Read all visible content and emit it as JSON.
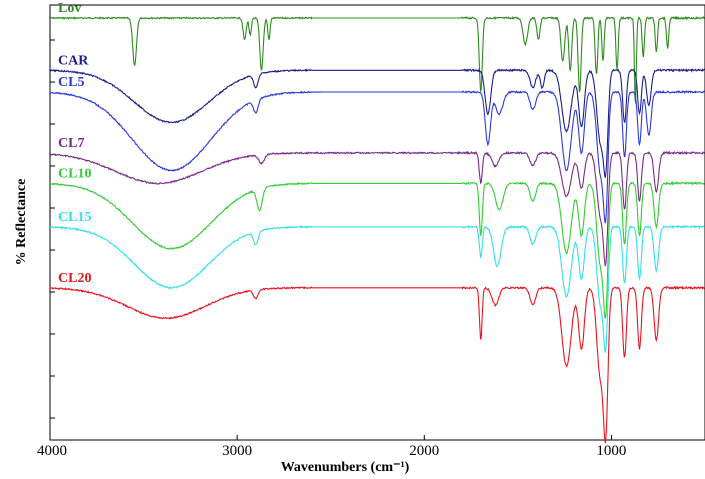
{
  "chart_data": {
    "type": "line",
    "title": "",
    "xlabel": "Wavenumbers (cm⁻¹)",
    "ylabel": "% Reflectance",
    "xlim": [
      4000,
      500
    ],
    "x_reversed": true,
    "x_ticks": [
      4000,
      3000,
      2000,
      1000
    ],
    "y_ticks_labeled": false,
    "grid": false,
    "legend": "inline labels at left",
    "series": [
      {
        "name": "Lov",
        "color": "#2e8b1e",
        "offset": 0.0,
        "baseline": 0.03,
        "bands": [
          {
            "center": 3548,
            "width": 10,
            "depth": 0.11
          },
          {
            "center": 2960,
            "width": 8,
            "depth": 0.05
          },
          {
            "center": 2930,
            "width": 6,
            "depth": 0.04
          },
          {
            "center": 2870,
            "width": 9,
            "depth": 0.12
          },
          {
            "center": 2830,
            "width": 6,
            "depth": 0.05
          },
          {
            "center": 1698,
            "width": 8,
            "depth": 0.17
          },
          {
            "center": 1460,
            "width": 12,
            "depth": 0.06
          },
          {
            "center": 1390,
            "width": 8,
            "depth": 0.05
          },
          {
            "center": 1260,
            "width": 10,
            "depth": 0.1
          },
          {
            "center": 1220,
            "width": 8,
            "depth": 0.12
          },
          {
            "center": 1170,
            "width": 8,
            "depth": 0.17
          },
          {
            "center": 1080,
            "width": 7,
            "depth": 0.13
          },
          {
            "center": 1045,
            "width": 6,
            "depth": 0.1
          },
          {
            "center": 970,
            "width": 6,
            "depth": 0.12
          },
          {
            "center": 872,
            "width": 5,
            "depth": 0.2
          },
          {
            "center": 830,
            "width": 6,
            "depth": 0.09
          },
          {
            "center": 760,
            "width": 6,
            "depth": 0.08
          },
          {
            "center": 700,
            "width": 6,
            "depth": 0.07
          }
        ]
      },
      {
        "name": "CAR",
        "color": "#1c1c8a",
        "offset": 0.12,
        "baseline": 0.03,
        "bands": [
          {
            "center": 3350,
            "width": 200,
            "depth": 0.12
          },
          {
            "center": 2900,
            "width": 12,
            "depth": 0.03
          },
          {
            "center": 1660,
            "width": 15,
            "depth": 0.1
          },
          {
            "center": 1420,
            "width": 15,
            "depth": 0.04
          },
          {
            "center": 1370,
            "width": 10,
            "depth": 0.04
          },
          {
            "center": 1240,
            "width": 25,
            "depth": 0.14
          },
          {
            "center": 1160,
            "width": 15,
            "depth": 0.13
          },
          {
            "center": 1060,
            "width": 18,
            "depth": 0.16
          },
          {
            "center": 1030,
            "width": 12,
            "depth": 0.2
          },
          {
            "center": 930,
            "width": 10,
            "depth": 0.12
          },
          {
            "center": 850,
            "width": 10,
            "depth": 0.1
          },
          {
            "center": 800,
            "width": 12,
            "depth": 0.08
          }
        ]
      },
      {
        "name": "CL5",
        "color": "#2a3ad6",
        "offset": 0.17,
        "baseline": 0.03,
        "bands": [
          {
            "center": 3350,
            "width": 210,
            "depth": 0.18
          },
          {
            "center": 2900,
            "width": 12,
            "depth": 0.03
          },
          {
            "center": 1660,
            "width": 14,
            "depth": 0.12
          },
          {
            "center": 1600,
            "width": 20,
            "depth": 0.05
          },
          {
            "center": 1420,
            "width": 15,
            "depth": 0.04
          },
          {
            "center": 1240,
            "width": 25,
            "depth": 0.18
          },
          {
            "center": 1160,
            "width": 15,
            "depth": 0.14
          },
          {
            "center": 1060,
            "width": 18,
            "depth": 0.18
          },
          {
            "center": 1030,
            "width": 12,
            "depth": 0.25
          },
          {
            "center": 930,
            "width": 10,
            "depth": 0.15
          },
          {
            "center": 850,
            "width": 10,
            "depth": 0.12
          },
          {
            "center": 800,
            "width": 12,
            "depth": 0.1
          }
        ]
      },
      {
        "name": "CL7",
        "color": "#7a2a8c",
        "offset": 0.32,
        "baseline": 0.02,
        "bands": [
          {
            "center": 3420,
            "width": 230,
            "depth": 0.07
          },
          {
            "center": 2870,
            "width": 15,
            "depth": 0.02
          },
          {
            "center": 1698,
            "width": 8,
            "depth": 0.07
          },
          {
            "center": 1620,
            "width": 18,
            "depth": 0.03
          },
          {
            "center": 1420,
            "width": 15,
            "depth": 0.03
          },
          {
            "center": 1240,
            "width": 25,
            "depth": 0.1
          },
          {
            "center": 1160,
            "width": 15,
            "depth": 0.08
          },
          {
            "center": 1060,
            "width": 18,
            "depth": 0.14
          },
          {
            "center": 1030,
            "width": 12,
            "depth": 0.22
          },
          {
            "center": 930,
            "width": 10,
            "depth": 0.13
          },
          {
            "center": 850,
            "width": 10,
            "depth": 0.11
          },
          {
            "center": 760,
            "width": 12,
            "depth": 0.09
          }
        ]
      },
      {
        "name": "CL10",
        "color": "#33cc33",
        "offset": 0.38,
        "baseline": 0.03,
        "bands": [
          {
            "center": 3350,
            "width": 210,
            "depth": 0.15
          },
          {
            "center": 2880,
            "width": 14,
            "depth": 0.05
          },
          {
            "center": 1698,
            "width": 8,
            "depth": 0.12
          },
          {
            "center": 1600,
            "width": 20,
            "depth": 0.06
          },
          {
            "center": 1420,
            "width": 15,
            "depth": 0.04
          },
          {
            "center": 1240,
            "width": 25,
            "depth": 0.16
          },
          {
            "center": 1160,
            "width": 15,
            "depth": 0.12
          },
          {
            "center": 1060,
            "width": 18,
            "depth": 0.18
          },
          {
            "center": 1030,
            "width": 12,
            "depth": 0.26
          },
          {
            "center": 930,
            "width": 10,
            "depth": 0.14
          },
          {
            "center": 850,
            "width": 10,
            "depth": 0.12
          },
          {
            "center": 760,
            "width": 12,
            "depth": 0.1
          }
        ]
      },
      {
        "name": "CL15",
        "color": "#33e0e8",
        "offset": 0.48,
        "baseline": 0.03,
        "bands": [
          {
            "center": 3350,
            "width": 200,
            "depth": 0.14
          },
          {
            "center": 2900,
            "width": 12,
            "depth": 0.03
          },
          {
            "center": 1698,
            "width": 8,
            "depth": 0.07
          },
          {
            "center": 1610,
            "width": 20,
            "depth": 0.09
          },
          {
            "center": 1420,
            "width": 15,
            "depth": 0.04
          },
          {
            "center": 1240,
            "width": 25,
            "depth": 0.16
          },
          {
            "center": 1160,
            "width": 15,
            "depth": 0.12
          },
          {
            "center": 1060,
            "width": 18,
            "depth": 0.17
          },
          {
            "center": 1030,
            "width": 12,
            "depth": 0.24
          },
          {
            "center": 930,
            "width": 10,
            "depth": 0.13
          },
          {
            "center": 850,
            "width": 10,
            "depth": 0.12
          },
          {
            "center": 760,
            "width": 12,
            "depth": 0.1
          }
        ]
      },
      {
        "name": "CL20",
        "color": "#e8141e",
        "offset": 0.62,
        "baseline": 0.03,
        "bands": [
          {
            "center": 3380,
            "width": 210,
            "depth": 0.07
          },
          {
            "center": 2900,
            "width": 12,
            "depth": 0.02
          },
          {
            "center": 1698,
            "width": 7,
            "depth": 0.12
          },
          {
            "center": 1620,
            "width": 18,
            "depth": 0.04
          },
          {
            "center": 1420,
            "width": 15,
            "depth": 0.04
          },
          {
            "center": 1240,
            "width": 25,
            "depth": 0.18
          },
          {
            "center": 1160,
            "width": 15,
            "depth": 0.14
          },
          {
            "center": 1060,
            "width": 18,
            "depth": 0.2
          },
          {
            "center": 1030,
            "width": 12,
            "depth": 0.3
          },
          {
            "center": 930,
            "width": 10,
            "depth": 0.16
          },
          {
            "center": 850,
            "width": 10,
            "depth": 0.14
          },
          {
            "center": 760,
            "width": 12,
            "depth": 0.12
          }
        ]
      }
    ]
  }
}
